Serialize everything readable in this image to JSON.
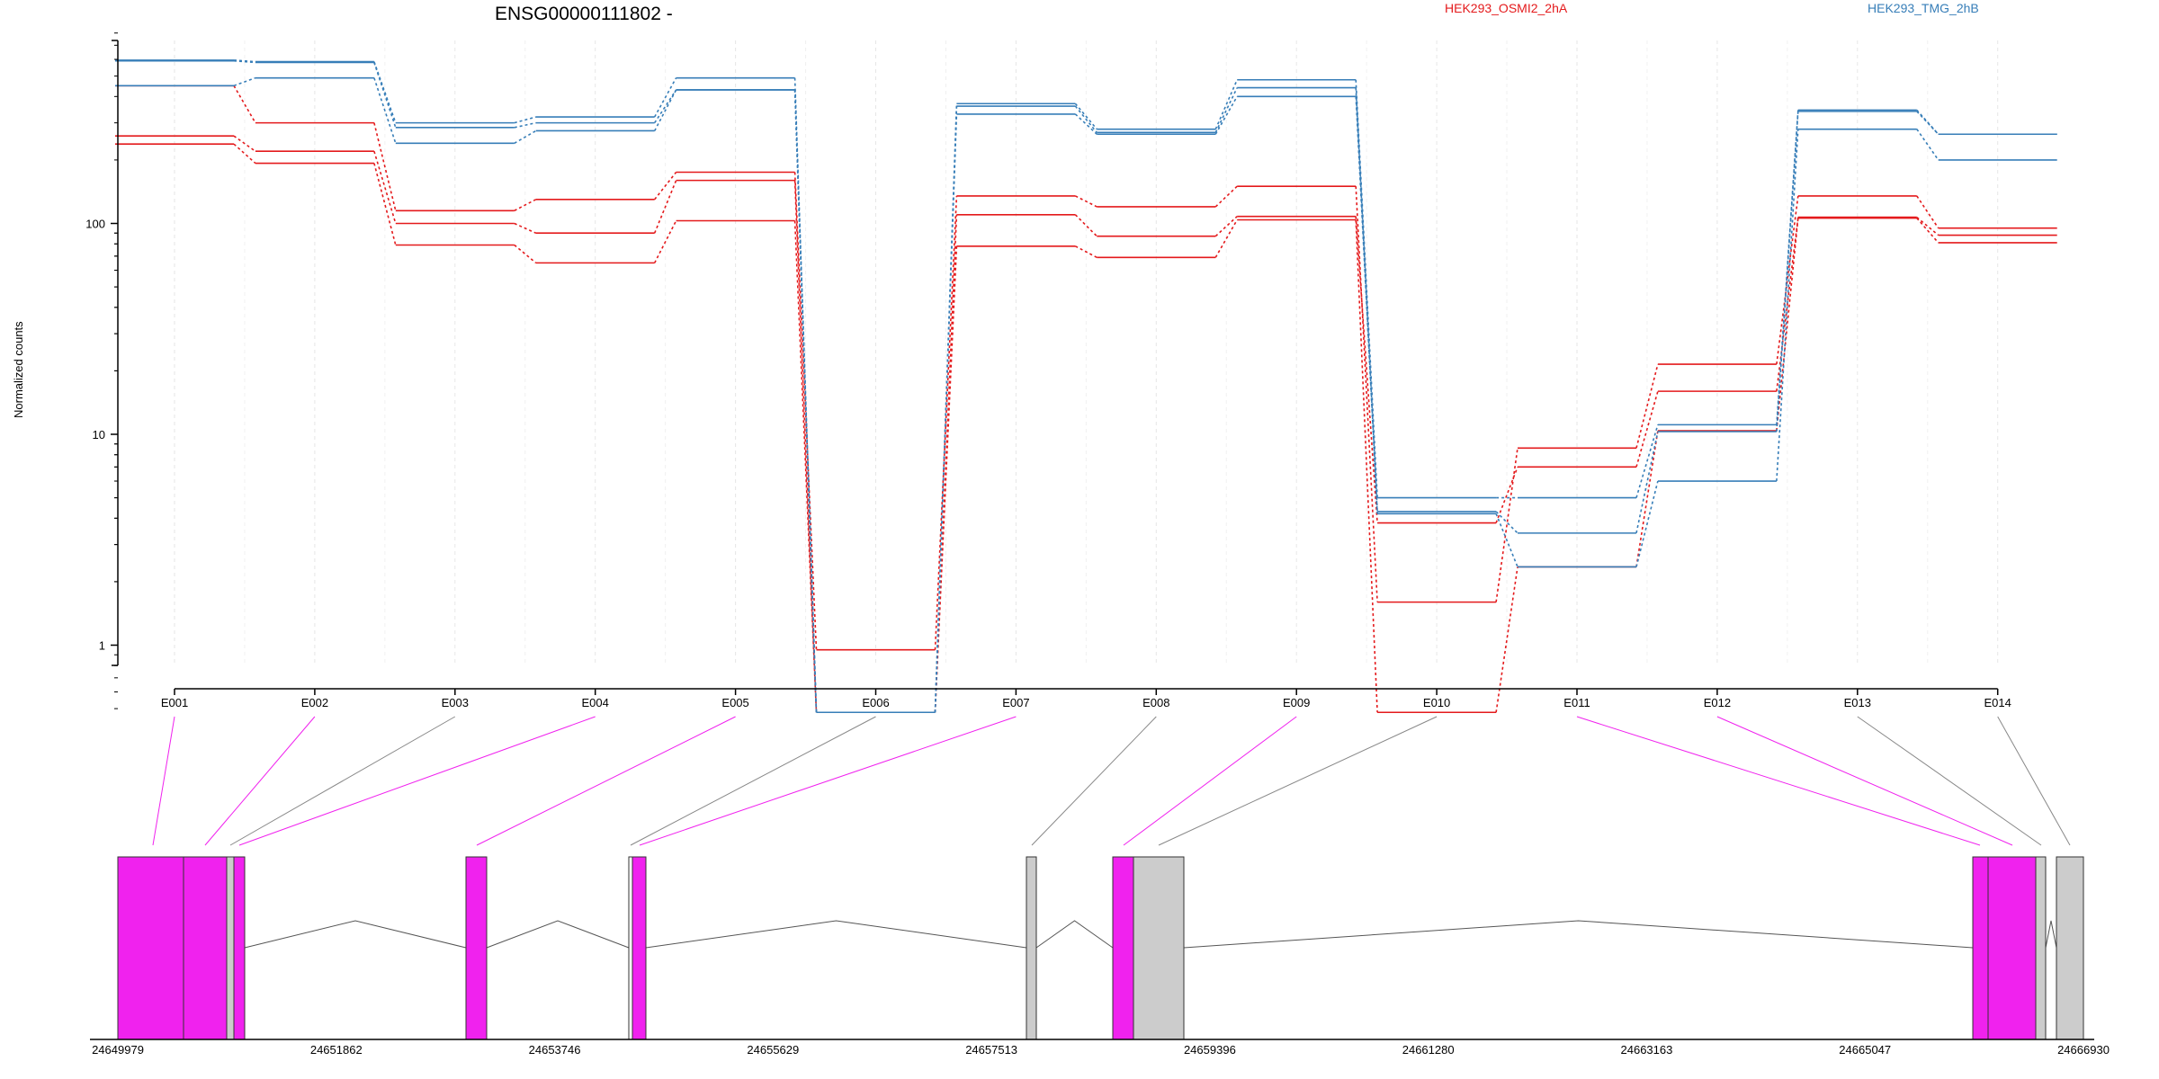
{
  "chart_data": {
    "type": "line",
    "title": "ENSG00000111802 -",
    "ylabel": "Normalized counts",
    "xlabel": "",
    "yscale": "log",
    "ylim": [
      0.45,
      870
    ],
    "grid": false,
    "legend_placement": "top",
    "y_ticks": [
      {
        "value": 1,
        "label": "1"
      },
      {
        "value": 10,
        "label": "10"
      },
      {
        "value": 100,
        "label": "100"
      }
    ],
    "categories": [
      "E001",
      "E002",
      "E003",
      "E004",
      "E005",
      "E006",
      "E007",
      "E008",
      "E009",
      "E010",
      "E011",
      "E012",
      "E013",
      "E014"
    ],
    "groups": [
      {
        "name": "HEK293_OSMI2_2hA",
        "color": "#e41a1c"
      },
      {
        "name": "HEK293_TMG_2hB",
        "color": "#377eb8"
      }
    ],
    "series": [
      {
        "group": 0,
        "values": [
          450,
          300,
          115,
          130,
          175,
          0.95,
          135,
          120,
          150,
          1.6,
          8.6,
          21.5,
          135,
          95
        ]
      },
      {
        "group": 0,
        "values": [
          260,
          220,
          100,
          90,
          160,
          0.48,
          110,
          87,
          108,
          3.8,
          7.0,
          16.0,
          107,
          88
        ]
      },
      {
        "group": 0,
        "values": [
          238,
          193,
          79,
          65,
          103,
          0.48,
          78,
          69,
          104,
          0.48,
          2.35,
          10.4,
          106,
          81
        ]
      },
      {
        "group": 1,
        "values": [
          595,
          585,
          300,
          320,
          490,
          0.48,
          370,
          280,
          480,
          5.0,
          5.0,
          11.1,
          345,
          265
        ]
      },
      {
        "group": 1,
        "values": [
          590,
          580,
          285,
          300,
          430,
          0.48,
          360,
          270,
          440,
          4.3,
          3.4,
          10.3,
          340,
          265
        ]
      },
      {
        "group": 1,
        "values": [
          450,
          490,
          240,
          275,
          430,
          0.48,
          330,
          265,
          400,
          4.2,
          2.35,
          6.0,
          280,
          200
        ]
      }
    ],
    "genomic_axis": {
      "ticks": [
        "24649979",
        "24651862",
        "24653746",
        "24655629",
        "24657513",
        "24659396",
        "24661280",
        "24663163",
        "24665047",
        "24666930"
      ],
      "highlight_color": "#f022ee",
      "plain_color": "#cccccc"
    }
  }
}
